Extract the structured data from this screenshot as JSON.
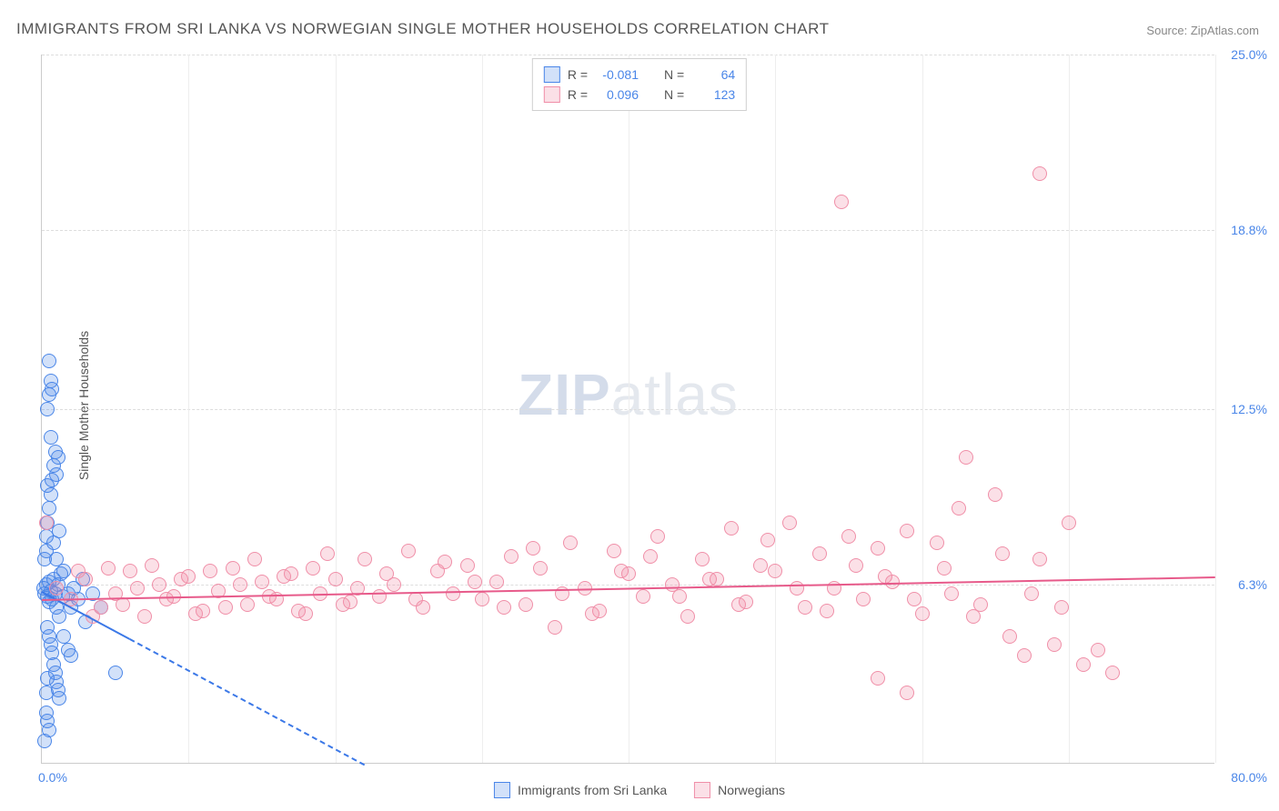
{
  "title": "IMMIGRANTS FROM SRI LANKA VS NORWEGIAN SINGLE MOTHER HOUSEHOLDS CORRELATION CHART",
  "source_label": "Source:",
  "source_name": "ZipAtlas.com",
  "ylabel": "Single Mother Households",
  "watermark_a": "ZIP",
  "watermark_b": "atlas",
  "chart": {
    "type": "scatter",
    "xlim": [
      0,
      80
    ],
    "ylim": [
      0,
      25
    ],
    "x_unit": "%",
    "y_unit": "%",
    "xtick_min_label": "0.0%",
    "xtick_max_label": "80.0%",
    "y_gridlines": [
      6.3,
      12.5,
      18.8,
      25.0
    ],
    "y_gridline_labels": [
      "6.3%",
      "12.5%",
      "18.8%",
      "25.0%"
    ],
    "x_gridlines": [
      10,
      20,
      30,
      40,
      50,
      60,
      70,
      80
    ],
    "background_color": "#ffffff",
    "grid_color": "#dddddd",
    "axis_label_color": "#4a86e8",
    "title_color": "#555555",
    "title_fontsize": 17,
    "label_fontsize": 14,
    "marker_radius": 8,
    "marker_stroke_width": 1.5,
    "marker_fill_opacity": 0.25
  },
  "series": [
    {
      "name": "Immigrants from Sri Lanka",
      "color_stroke": "#4a86e8",
      "color_fill": "rgba(74,134,232,0.25)",
      "R": "-0.081",
      "N": "64",
      "trend": {
        "x1": 0,
        "y1": 6.1,
        "x2": 22,
        "y2": 0,
        "solid_until_x": 6,
        "color": "#3b78e7",
        "width": 2
      },
      "points": [
        [
          0.1,
          6.2
        ],
        [
          0.2,
          6.0
        ],
        [
          0.3,
          6.3
        ],
        [
          0.4,
          5.9
        ],
        [
          0.5,
          6.4
        ],
        [
          0.5,
          5.7
        ],
        [
          0.6,
          6.1
        ],
        [
          0.7,
          5.8
        ],
        [
          0.8,
          6.5
        ],
        [
          0.9,
          6.0
        ],
        [
          1.0,
          5.5
        ],
        [
          1.1,
          6.3
        ],
        [
          1.2,
          5.2
        ],
        [
          1.3,
          6.7
        ],
        [
          1.4,
          5.9
        ],
        [
          1.5,
          6.8
        ],
        [
          0.2,
          7.2
        ],
        [
          0.3,
          7.5
        ],
        [
          0.4,
          4.8
        ],
        [
          0.5,
          4.5
        ],
        [
          0.6,
          4.2
        ],
        [
          0.7,
          3.9
        ],
        [
          0.8,
          3.5
        ],
        [
          0.9,
          3.2
        ],
        [
          1.0,
          2.9
        ],
        [
          1.1,
          2.6
        ],
        [
          1.2,
          2.3
        ],
        [
          0.3,
          8.0
        ],
        [
          0.4,
          8.5
        ],
        [
          0.5,
          9.0
        ],
        [
          0.6,
          9.5
        ],
        [
          0.7,
          10.0
        ],
        [
          0.8,
          10.5
        ],
        [
          0.9,
          11.0
        ],
        [
          1.0,
          10.2
        ],
        [
          1.1,
          10.8
        ],
        [
          0.4,
          12.5
        ],
        [
          0.5,
          13.0
        ],
        [
          0.6,
          13.5
        ],
        [
          0.7,
          13.2
        ],
        [
          0.5,
          14.2
        ],
        [
          0.3,
          1.8
        ],
        [
          0.4,
          1.5
        ],
        [
          0.5,
          1.2
        ],
        [
          1.8,
          6.0
        ],
        [
          2.0,
          5.5
        ],
        [
          2.2,
          6.2
        ],
        [
          2.5,
          5.8
        ],
        [
          2.8,
          6.5
        ],
        [
          3.0,
          5.0
        ],
        [
          3.5,
          6.0
        ],
        [
          4.0,
          5.5
        ],
        [
          1.5,
          4.5
        ],
        [
          1.8,
          4.0
        ],
        [
          2.0,
          3.8
        ],
        [
          5.0,
          3.2
        ],
        [
          0.2,
          0.8
        ],
        [
          0.3,
          2.5
        ],
        [
          0.4,
          3.0
        ],
        [
          0.8,
          7.8
        ],
        [
          1.0,
          7.2
        ],
        [
          1.2,
          8.2
        ],
        [
          0.6,
          11.5
        ],
        [
          0.4,
          9.8
        ]
      ]
    },
    {
      "name": "Norwegians",
      "color_stroke": "#f08fa8",
      "color_fill": "rgba(240,143,168,0.28)",
      "R": "0.096",
      "N": "123",
      "trend": {
        "x1": 0,
        "y1": 5.8,
        "x2": 80,
        "y2": 6.6,
        "solid_until_x": 80,
        "color": "#e75a8a",
        "width": 2
      },
      "points": [
        [
          0.3,
          8.5
        ],
        [
          1.0,
          6.2
        ],
        [
          2.0,
          5.8
        ],
        [
          3.0,
          6.5
        ],
        [
          4.0,
          5.5
        ],
        [
          5.0,
          6.0
        ],
        [
          6.0,
          6.8
        ],
        [
          7.0,
          5.2
        ],
        [
          8.0,
          6.3
        ],
        [
          9.0,
          5.9
        ],
        [
          10.0,
          6.6
        ],
        [
          11.0,
          5.4
        ],
        [
          12.0,
          6.1
        ],
        [
          13.0,
          6.9
        ],
        [
          14.0,
          5.6
        ],
        [
          15.0,
          6.4
        ],
        [
          16.0,
          5.8
        ],
        [
          17.0,
          6.7
        ],
        [
          18.0,
          5.3
        ],
        [
          19.0,
          6.0
        ],
        [
          20.0,
          6.5
        ],
        [
          21.0,
          5.7
        ],
        [
          22.0,
          7.2
        ],
        [
          23.0,
          5.9
        ],
        [
          24.0,
          6.3
        ],
        [
          25.0,
          7.5
        ],
        [
          26.0,
          5.5
        ],
        [
          27.0,
          6.8
        ],
        [
          28.0,
          6.0
        ],
        [
          29.0,
          7.0
        ],
        [
          30.0,
          5.8
        ],
        [
          31.0,
          6.4
        ],
        [
          32.0,
          7.3
        ],
        [
          33.0,
          5.6
        ],
        [
          34.0,
          6.9
        ],
        [
          35.0,
          4.8
        ],
        [
          36.0,
          7.8
        ],
        [
          37.0,
          6.2
        ],
        [
          38.0,
          5.4
        ],
        [
          39.0,
          7.5
        ],
        [
          40.0,
          6.7
        ],
        [
          41.0,
          5.9
        ],
        [
          42.0,
          8.0
        ],
        [
          43.0,
          6.3
        ],
        [
          44.0,
          5.2
        ],
        [
          45.0,
          7.2
        ],
        [
          46.0,
          6.5
        ],
        [
          47.0,
          8.3
        ],
        [
          48.0,
          5.7
        ],
        [
          49.0,
          7.0
        ],
        [
          50.0,
          6.8
        ],
        [
          51.0,
          8.5
        ],
        [
          52.0,
          5.5
        ],
        [
          53.0,
          7.4
        ],
        [
          54.0,
          6.2
        ],
        [
          55.0,
          8.0
        ],
        [
          56.0,
          5.8
        ],
        [
          57.0,
          7.6
        ],
        [
          58.0,
          6.4
        ],
        [
          59.0,
          8.2
        ],
        [
          60.0,
          5.3
        ],
        [
          61.0,
          7.8
        ],
        [
          62.0,
          6.0
        ],
        [
          63.0,
          10.8
        ],
        [
          64.0,
          5.6
        ],
        [
          65.0,
          9.5
        ],
        [
          66.0,
          4.5
        ],
        [
          67.0,
          3.8
        ],
        [
          68.0,
          7.2
        ],
        [
          69.0,
          4.2
        ],
        [
          70.0,
          8.5
        ],
        [
          71.0,
          3.5
        ],
        [
          54.5,
          19.8
        ],
        [
          68.0,
          20.8
        ],
        [
          59.0,
          2.5
        ],
        [
          57.0,
          3.0
        ],
        [
          72.0,
          4.0
        ],
        [
          73.0,
          3.2
        ],
        [
          62.5,
          9.0
        ],
        [
          2.5,
          6.8
        ],
        [
          3.5,
          5.2
        ],
        [
          4.5,
          6.9
        ],
        [
          5.5,
          5.6
        ],
        [
          6.5,
          6.2
        ],
        [
          7.5,
          7.0
        ],
        [
          8.5,
          5.8
        ],
        [
          9.5,
          6.5
        ],
        [
          10.5,
          5.3
        ],
        [
          11.5,
          6.8
        ],
        [
          12.5,
          5.5
        ],
        [
          13.5,
          6.3
        ],
        [
          14.5,
          7.2
        ],
        [
          15.5,
          5.9
        ],
        [
          16.5,
          6.6
        ],
        [
          17.5,
          5.4
        ],
        [
          18.5,
          6.9
        ],
        [
          19.5,
          7.4
        ],
        [
          20.5,
          5.6
        ],
        [
          21.5,
          6.2
        ],
        [
          23.5,
          6.7
        ],
        [
          25.5,
          5.8
        ],
        [
          27.5,
          7.1
        ],
        [
          29.5,
          6.4
        ],
        [
          31.5,
          5.5
        ],
        [
          33.5,
          7.6
        ],
        [
          35.5,
          6.0
        ],
        [
          37.5,
          5.3
        ],
        [
          39.5,
          6.8
        ],
        [
          41.5,
          7.3
        ],
        [
          43.5,
          5.9
        ],
        [
          45.5,
          6.5
        ],
        [
          47.5,
          5.6
        ],
        [
          49.5,
          7.9
        ],
        [
          51.5,
          6.2
        ],
        [
          53.5,
          5.4
        ],
        [
          55.5,
          7.0
        ],
        [
          57.5,
          6.6
        ],
        [
          59.5,
          5.8
        ],
        [
          61.5,
          6.9
        ],
        [
          63.5,
          5.2
        ],
        [
          65.5,
          7.4
        ],
        [
          67.5,
          6.0
        ],
        [
          69.5,
          5.5
        ]
      ]
    }
  ],
  "legend": {
    "R_label": "R =",
    "N_label": "N ="
  },
  "bottom_legend_labels": [
    "Immigrants from Sri Lanka",
    "Norwegians"
  ]
}
